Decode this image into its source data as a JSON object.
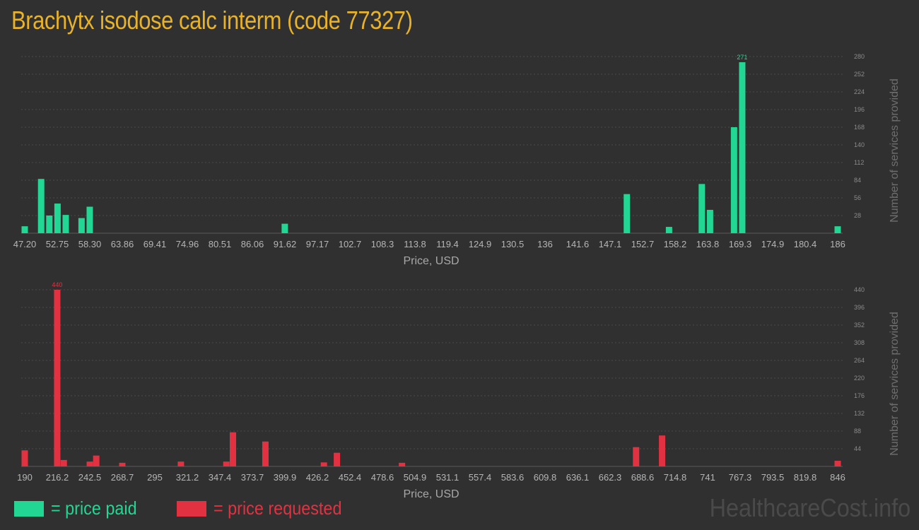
{
  "title": "Brachytx isodose calc interm (code 77327)",
  "colors": {
    "paid": "#22d693",
    "requested": "#e23242",
    "title": "#e8b32a",
    "background": "#303030"
  },
  "legend": {
    "paid_label": "= price paid",
    "requested_label": "= price requested"
  },
  "watermark": "HealthcareCost.info",
  "chart_data": [
    {
      "type": "bar",
      "color": "#22d693",
      "xlabel": "Price, USD",
      "ylabel": "Number of services provided",
      "ylim": [
        0,
        280
      ],
      "yticks": [
        28,
        56,
        84,
        112,
        140,
        168,
        196,
        224,
        252,
        280
      ],
      "xrange": [
        47.2,
        186
      ],
      "xticks": [
        "47.20",
        "52.75",
        "58.30",
        "63.86",
        "69.41",
        "74.96",
        "80.51",
        "86.06",
        "91.62",
        "97.17",
        "102.7",
        "108.3",
        "113.8",
        "119.4",
        "124.9",
        "130.5",
        "136",
        "141.6",
        "147.1",
        "152.7",
        "158.2",
        "163.8",
        "169.3",
        "174.9",
        "180.4",
        "186"
      ],
      "grid": true,
      "bars": [
        {
          "x": 47.2,
          "value": 11
        },
        {
          "x": 50.0,
          "value": 86
        },
        {
          "x": 51.4,
          "value": 28
        },
        {
          "x": 52.8,
          "value": 47
        },
        {
          "x": 54.2,
          "value": 29
        },
        {
          "x": 56.9,
          "value": 24
        },
        {
          "x": 58.3,
          "value": 42
        },
        {
          "x": 91.6,
          "value": 15
        },
        {
          "x": 150.0,
          "value": 62
        },
        {
          "x": 157.2,
          "value": 10
        },
        {
          "x": 162.8,
          "value": 78
        },
        {
          "x": 164.2,
          "value": 37
        },
        {
          "x": 168.3,
          "value": 168
        },
        {
          "x": 169.7,
          "value": 271,
          "label": "271"
        },
        {
          "x": 186.0,
          "value": 11
        }
      ]
    },
    {
      "type": "bar",
      "color": "#e23242",
      "xlabel": "Price, USD",
      "ylabel": "Number of services provided",
      "ylim": [
        0,
        440
      ],
      "yticks": [
        44,
        88,
        132,
        176,
        220,
        264,
        308,
        352,
        396,
        440
      ],
      "xrange": [
        190,
        846
      ],
      "xticks": [
        "190",
        "216.2",
        "242.5",
        "268.7",
        "295",
        "321.2",
        "347.4",
        "373.7",
        "399.9",
        "426.2",
        "452.4",
        "478.6",
        "504.9",
        "531.1",
        "557.4",
        "583.6",
        "609.8",
        "636.1",
        "662.3",
        "688.6",
        "714.8",
        "741",
        "767.3",
        "793.5",
        "819.8",
        "846"
      ],
      "grid": true,
      "bars": [
        {
          "x": 190.0,
          "value": 40
        },
        {
          "x": 216.2,
          "value": 440,
          "label": "440"
        },
        {
          "x": 221.5,
          "value": 16
        },
        {
          "x": 242.5,
          "value": 12
        },
        {
          "x": 247.7,
          "value": 27
        },
        {
          "x": 268.7,
          "value": 9
        },
        {
          "x": 316.0,
          "value": 12
        },
        {
          "x": 352.7,
          "value": 12
        },
        {
          "x": 358.0,
          "value": 85
        },
        {
          "x": 384.2,
          "value": 62
        },
        {
          "x": 431.4,
          "value": 10
        },
        {
          "x": 441.9,
          "value": 34
        },
        {
          "x": 494.4,
          "value": 9
        },
        {
          "x": 683.3,
          "value": 48
        },
        {
          "x": 704.3,
          "value": 77
        },
        {
          "x": 846.0,
          "value": 14
        }
      ]
    }
  ]
}
